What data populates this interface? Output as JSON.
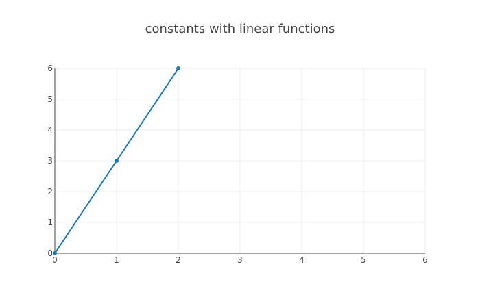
{
  "chart_data": {
    "type": "line",
    "title": "constants with linear functions",
    "xlabel": "",
    "ylabel": "",
    "xlim": [
      0,
      6
    ],
    "ylim": [
      0,
      6
    ],
    "x_ticks": [
      "0",
      "1",
      "2",
      "3",
      "4",
      "5",
      "6"
    ],
    "y_ticks": [
      "0",
      "1",
      "2",
      "3",
      "4",
      "5",
      "6"
    ],
    "grid": true,
    "series": [
      {
        "x": [
          0,
          1,
          2
        ],
        "y": [
          0,
          3,
          6
        ],
        "color": "#1f77b4",
        "mode": "lines+markers"
      }
    ]
  }
}
